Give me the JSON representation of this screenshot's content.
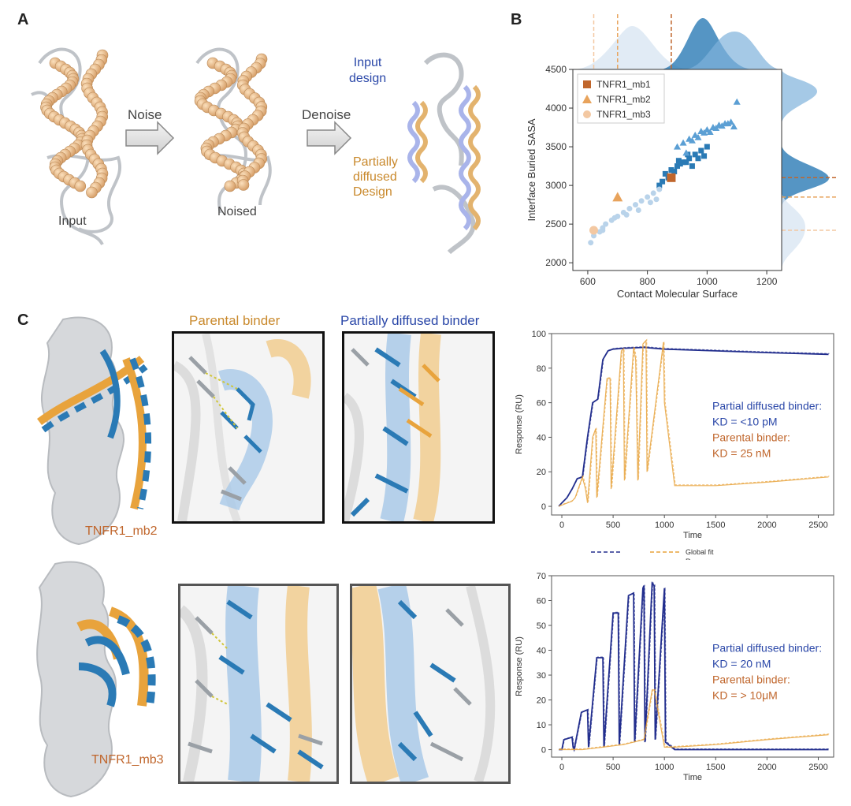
{
  "panels": {
    "a": {
      "letter": "A",
      "input_label": "Input",
      "noise_label": "Noise",
      "noised_label": "Noised",
      "denoise_label": "Denoise",
      "input_design_label": "Input\ndesign",
      "partial_label": "Partially\ndiffused\nDesign"
    },
    "b": {
      "letter": "B"
    },
    "c": {
      "letter": "C",
      "mb2_label": "TNFR1_mb2",
      "mb3_label": "TNFR1_mb3",
      "parental_title": "Parental binder",
      "partial_title": "Partially diffused binder"
    }
  },
  "colors": {
    "blue": "#2a7ab5",
    "lightblue": "#9ec4e4",
    "orange": "#e8a33c",
    "lightorange": "#f2c98f",
    "brown": "#c0662c",
    "navy": "#232f8e",
    "gray": "#cfd3d8"
  },
  "chart_data": [
    {
      "type": "scatter",
      "xlabel": "Contact Molecular Surface",
      "ylabel": "Interface Buried SASA",
      "xlim": [
        550,
        1250
      ],
      "ylim": [
        1900,
        4500
      ],
      "xticks": [
        600,
        800,
        1000,
        1200
      ],
      "yticks": [
        2000,
        2500,
        3000,
        3500,
        4000,
        4500
      ],
      "legend_position": "top-left",
      "series": [
        {
          "name": "TNFR1_mb1",
          "marker": "square",
          "color": "#2a7ab5",
          "x": [
            860,
            880,
            900,
            920,
            940,
            960,
            980,
            1000,
            850,
            870,
            890,
            910,
            930,
            950,
            970,
            990,
            840,
            880,
            905,
            935
          ],
          "y": [
            3150,
            3200,
            3250,
            3300,
            3350,
            3400,
            3450,
            3500,
            3050,
            3100,
            3180,
            3280,
            3300,
            3250,
            3350,
            3380,
            3000,
            3120,
            3320,
            3400
          ]
        },
        {
          "name": "TNFR1_mb2",
          "marker": "triangle",
          "color": "#5b9fd4",
          "x": [
            900,
            920,
            940,
            960,
            980,
            1000,
            1020,
            1040,
            1060,
            1080,
            1100,
            950,
            970,
            990,
            1010,
            1030,
            1050,
            1070,
            930,
            1090
          ],
          "y": [
            3500,
            3550,
            3600,
            3650,
            3700,
            3720,
            3750,
            3780,
            3800,
            3820,
            4080,
            3580,
            3620,
            3680,
            3690,
            3740,
            3770,
            3800,
            3420,
            3760
          ]
        },
        {
          "name": "TNFR1_mb3",
          "marker": "circle",
          "color": "#b9d3ea",
          "x": [
            610,
            620,
            640,
            650,
            660,
            680,
            700,
            720,
            740,
            760,
            780,
            800,
            820,
            840,
            650,
            690,
            730,
            770,
            810,
            830
          ],
          "y": [
            2260,
            2350,
            2400,
            2450,
            2500,
            2550,
            2600,
            2650,
            2700,
            2750,
            2800,
            2850,
            2900,
            2950,
            2420,
            2580,
            2620,
            2680,
            2780,
            2820
          ]
        }
      ],
      "highlights": [
        {
          "name": "TNFR1_mb1",
          "marker": "square",
          "color": "#c0662c",
          "x": 880,
          "y": 3100
        },
        {
          "name": "TNFR1_mb2",
          "marker": "triangle",
          "color": "#e8a35c",
          "x": 700,
          "y": 2850
        },
        {
          "name": "TNFR1_mb3",
          "marker": "circle",
          "color": "#f3c8a2",
          "x": 620,
          "y": 2420
        }
      ]
    },
    {
      "type": "line",
      "xlabel": "Time",
      "ylabel": "Response (RU)",
      "xlim": [
        -100,
        2650
      ],
      "ylim": [
        -5,
        100
      ],
      "xticks": [
        0,
        500,
        1000,
        1500,
        2000,
        2500
      ],
      "yticks": [
        0,
        20,
        40,
        60,
        80,
        100
      ],
      "legend": {
        "global_fit": "Global fit",
        "response": "Response"
      },
      "annotations": {
        "partial": "Partial diffused binder:",
        "partial_kd": "KD = <10 pM",
        "parental": "Parental binder:",
        "parental_kd": "KD = 25 nM"
      },
      "series": [
        {
          "name": "Partial diffused binder",
          "color": "#232f8e",
          "x": [
            -30,
            0,
            50,
            100,
            150,
            200,
            250,
            300,
            350,
            400,
            450,
            500,
            600,
            800,
            1000,
            1500,
            2000,
            2600
          ],
          "y": [
            0,
            2,
            5,
            10,
            16,
            17,
            40,
            60,
            62,
            85,
            90,
            91,
            91.5,
            92,
            91,
            90,
            89,
            88
          ]
        },
        {
          "name": "Parental binder",
          "color": "#e8a33c",
          "x": [
            -30,
            100,
            130,
            200,
            230,
            250,
            300,
            330,
            340,
            440,
            470,
            480,
            580,
            600,
            610,
            700,
            720,
            740,
            790,
            820,
            830,
            990,
            1000,
            1100,
            1500,
            2000,
            2600
          ],
          "y": [
            0,
            3,
            5,
            17,
            10,
            2,
            40,
            45,
            5,
            74,
            74,
            10,
            90,
            91,
            15,
            92,
            85,
            15,
            94,
            96,
            20,
            95,
            60,
            12,
            12,
            14,
            17
          ]
        }
      ]
    },
    {
      "type": "line",
      "xlabel": "Time",
      "ylabel": "Response (RU)",
      "xlim": [
        -100,
        2650
      ],
      "ylim": [
        -3,
        70
      ],
      "xticks": [
        0,
        500,
        1000,
        1500,
        2000,
        2500
      ],
      "yticks": [
        0,
        10,
        20,
        30,
        40,
        50,
        60,
        70
      ],
      "annotations": {
        "partial": "Partial diffused binder:",
        "partial_kd": "KD = 20 nM",
        "parental": "Parental binder:",
        "parental_kd": "KD = > 10μM"
      },
      "series": [
        {
          "name": "Partial diffused binder",
          "color": "#232f8e",
          "x": [
            -30,
            0,
            20,
            100,
            110,
            120,
            190,
            250,
            260,
            340,
            400,
            410,
            500,
            550,
            560,
            650,
            700,
            710,
            790,
            800,
            810,
            880,
            900,
            910,
            1000,
            1010,
            1100,
            1500,
            2000,
            2600
          ],
          "y": [
            0,
            0,
            4,
            5,
            1,
            0,
            15,
            16,
            1,
            37,
            37,
            1,
            55,
            55,
            2,
            62,
            63,
            3,
            65,
            66,
            3,
            67,
            66,
            4,
            65,
            3,
            0,
            0,
            0,
            0
          ]
        },
        {
          "name": "Parental binder",
          "color": "#e8a33c",
          "x": [
            -30,
            200,
            400,
            600,
            800,
            880,
            900,
            1000,
            1100,
            1500,
            2000,
            2600
          ],
          "y": [
            0,
            0,
            1,
            2,
            4,
            24,
            24,
            1,
            1,
            2,
            4,
            6
          ]
        }
      ]
    }
  ]
}
